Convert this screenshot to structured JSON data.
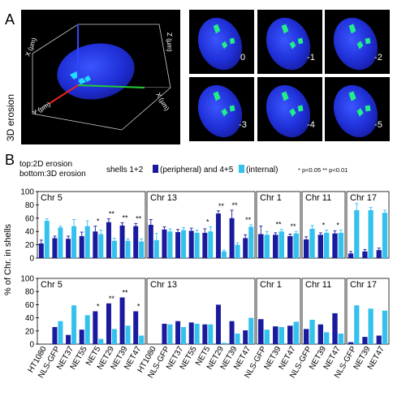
{
  "panel_a": {
    "label": "A",
    "side_label": "3D erosion",
    "axis_labels": [
      "X (µm)",
      "Y (µm)",
      "Z (µm)"
    ],
    "erosion_steps": [
      "0",
      "-1",
      "-2",
      "-3",
      "-4",
      "-5"
    ]
  },
  "panel_b": {
    "label": "B",
    "note_top": "top:2D erosion",
    "note_bottom": "bottom:3D erosion",
    "legend_text_1": "shells 1+2",
    "legend_text_2": "(peripheral) and 4+5",
    "legend_text_3": "(internal)",
    "sig_note": "* p<0.05 ** p<0.01",
    "ylabel": "% of Chr. in shells",
    "yticks": [
      "0",
      "20",
      "40",
      "60",
      "80",
      "100"
    ]
  },
  "colors": {
    "peripheral": "#1a1a9e",
    "internal": "#33c1ee",
    "nucleus": "#2233dd",
    "foci": "#22ee88"
  },
  "chart_data": [
    {
      "type": "bar",
      "title": "",
      "ylabel": "% of Chr. in shells",
      "ylim": [
        0,
        100
      ],
      "facets": [
        {
          "name": "Chr 5",
          "categories": [
            "HT1080",
            "NLS-GFP",
            "NET37",
            "NET55",
            "NET5",
            "NET29",
            "NET39",
            "NET47"
          ],
          "series": [
            {
              "name": "shells 1+2 (peripheral)",
              "values": [
                22,
                30,
                29,
                33,
                40,
                54,
                49,
                48
              ]
            },
            {
              "name": "shells 4+5 (internal)",
              "values": [
                56,
                46,
                48,
                48,
                36,
                26,
                26,
                25
              ]
            }
          ],
          "errors": [
            [
              5,
              3,
              4,
              6,
              8,
              5,
              4,
              4
            ],
            [
              3,
              2,
              10,
              8,
              6,
              4,
              3,
              4
            ]
          ],
          "significance": [
            "",
            "",
            "",
            "",
            "*",
            "**",
            "**",
            "**"
          ]
        },
        {
          "name": "Chr 13",
          "categories": [
            "HT1080",
            "NLS-GFP",
            "NET37",
            "NET55",
            "NET5",
            "NET29",
            "NET39",
            "NET47"
          ],
          "series": [
            {
              "name": "shells 1+2 (peripheral)",
              "values": [
                50,
                43,
                39,
                41,
                38,
                67,
                60,
                30
              ]
            },
            {
              "name": "shells 4+5 (internal)",
              "values": [
                27,
                40,
                42,
                38,
                40,
                10,
                20,
                47
              ]
            }
          ],
          "errors": [
            [
              8,
              4,
              4,
              4,
              6,
              4,
              12,
              5
            ],
            [
              10,
              4,
              4,
              4,
              7,
              2,
              3,
              3
            ]
          ],
          "significance": [
            "",
            "",
            "",
            "",
            "*",
            "**",
            "**",
            "**"
          ]
        },
        {
          "name": "Chr 1",
          "categories": [
            "NLS-GFP",
            "NET39",
            "NET47"
          ],
          "series": [
            {
              "name": "shells 1+2 (peripheral)",
              "values": [
                36,
                35,
                33
              ]
            },
            {
              "name": "shells 4+5 (internal)",
              "values": [
                35,
                40,
                37
              ]
            }
          ],
          "errors": [
            [
              12,
              3,
              3
            ],
            [
              5,
              3,
              3
            ]
          ],
          "significance": [
            "",
            "**",
            "**"
          ]
        },
        {
          "name": "Chr 11",
          "categories": [
            "NLS-GFP",
            "NET39",
            "NET47"
          ],
          "series": [
            {
              "name": "shells 1+2 (peripheral)",
              "values": [
                28,
                35,
                37
              ]
            },
            {
              "name": "shells 4+5 (internal)",
              "values": [
                44,
                38,
                38
              ]
            }
          ],
          "errors": [
            [
              4,
              3,
              4
            ],
            [
              5,
              4,
              4
            ]
          ],
          "significance": [
            "",
            "*",
            "*"
          ]
        },
        {
          "name": "Chr 17",
          "categories": [
            "NLS-GFP",
            "NET39",
            "NET47"
          ],
          "series": [
            {
              "name": "shells 1+2 (peripheral)",
              "values": [
                7,
                10,
                12
              ]
            },
            {
              "name": "shells 4+5 (internal)",
              "values": [
                72,
                72,
                68
              ]
            }
          ],
          "errors": [
            [
              3,
              3,
              3
            ],
            [
              10,
              4,
              4
            ]
          ],
          "significance": [
            "",
            "",
            ""
          ]
        }
      ]
    },
    {
      "type": "bar",
      "title": "",
      "ylabel": "% of Chr. in shells",
      "ylim": [
        0,
        100
      ],
      "facets": [
        {
          "name": "Chr 5",
          "categories": [
            "HT1080",
            "NLS-GFP",
            "NET37",
            "NET55",
            "NET5",
            "NET29",
            "NET39",
            "NET47"
          ],
          "series": [
            {
              "name": "shells 1+2 (peripheral)",
              "values": [
                0,
                26,
                14,
                22,
                50,
                62,
                71,
                50
              ]
            },
            {
              "name": "shells 4+5 (internal)",
              "values": [
                0,
                35,
                59,
                44,
                8,
                23,
                28,
                13
              ]
            }
          ],
          "significance": [
            "",
            "",
            "",
            "",
            "*",
            "**",
            "**",
            "*"
          ]
        },
        {
          "name": "Chr 13",
          "categories": [
            "HT1080",
            "NLS-GFP",
            "NET37",
            "NET55",
            "NET5",
            "NET29",
            "NET39",
            "NET47"
          ],
          "series": [
            {
              "name": "shells 1+2 (peripheral)",
              "values": [
                0,
                31,
                35,
                33,
                30,
                60,
                35,
                21
              ]
            },
            {
              "name": "shells 4+5 (internal)",
              "values": [
                0,
                30,
                26,
                31,
                30,
                2,
                16,
                40
              ]
            }
          ],
          "significance": [
            "",
            "",
            "",
            "",
            "",
            "",
            "",
            ""
          ]
        },
        {
          "name": "Chr 1",
          "categories": [
            "NLS-GFP",
            "NET39",
            "NET47"
          ],
          "series": [
            {
              "name": "shells 1+2 (peripheral)",
              "values": [
                38,
                27,
                28
              ]
            },
            {
              "name": "shells 4+5 (internal)",
              "values": [
                22,
                26,
                34
              ]
            }
          ],
          "significance": [
            "",
            "",
            ""
          ]
        },
        {
          "name": "Chr 11",
          "categories": [
            "NLS-GFP",
            "NET39",
            "NET47"
          ],
          "series": [
            {
              "name": "shells 1+2 (peripheral)",
              "values": [
                23,
                30,
                47
              ]
            },
            {
              "name": "shells 4+5 (internal)",
              "values": [
                37,
                18,
                16
              ]
            }
          ],
          "significance": [
            "",
            "",
            ""
          ]
        },
        {
          "name": "Chr 17",
          "categories": [
            "NLS-GFP",
            "NET39",
            "NET47"
          ],
          "series": [
            {
              "name": "shells 1+2 (peripheral)",
              "values": [
                3,
                11,
                13
              ]
            },
            {
              "name": "shells 4+5 (internal)",
              "values": [
                59,
                54,
                51
              ]
            }
          ],
          "significance": [
            "",
            "",
            ""
          ]
        }
      ]
    }
  ]
}
